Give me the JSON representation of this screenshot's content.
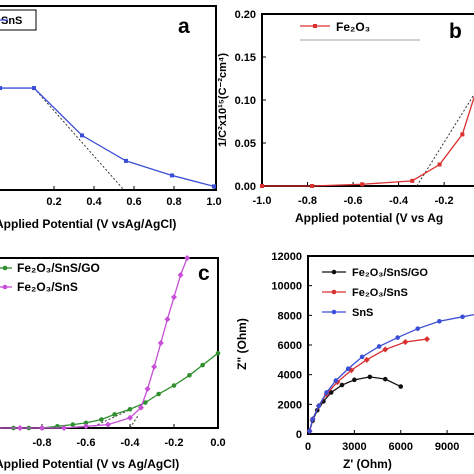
{
  "chart_data": [
    {
      "panel": "a",
      "type": "line",
      "xlabel": "Applied Potential (V vsAg/AgCl)",
      "xticks": [
        "0.2",
        "0.4",
        "0.6",
        "0.8",
        "1.0"
      ],
      "xlim": [
        -0.07,
        1.0
      ],
      "ylim": [
        0,
        1
      ],
      "series": [
        {
          "name": "SnS",
          "color": "#3a4fd6",
          "x": [
            -0.07,
            0.1,
            0.34,
            0.56,
            0.79,
            1.0
          ],
          "y": [
            0.56,
            0.56,
            0.3,
            0.16,
            0.08,
            0.02
          ]
        }
      ],
      "fit_line": {
        "x": [
          0.1,
          0.55
        ],
        "y": [
          0.56,
          0.0
        ]
      },
      "legend_entries": [
        "SnS"
      ]
    },
    {
      "panel": "b",
      "type": "line",
      "xlabel": "Applied potential (V vs Ag/AgCl)",
      "xlabel_visible": "Applied potential (V vs Ag",
      "ylabel": "1/C²x10¹⁵(C⁻²cm⁴)",
      "xticks": [
        "-1.0",
        "-0.8",
        "-0.6",
        "-0.4",
        "-0.2"
      ],
      "yticks": [
        "0.00",
        "0.05",
        "0.10",
        "0.15",
        "0.20"
      ],
      "xlim": [
        -1.0,
        -0.06
      ],
      "ylim": [
        0,
        0.2
      ],
      "series": [
        {
          "name": "Fe2O3",
          "color": "#d93030",
          "x": [
            -1.0,
            -0.78,
            -0.56,
            -0.34,
            -0.22,
            -0.12,
            -0.06
          ],
          "y": [
            0.0,
            0.0,
            0.002,
            0.006,
            0.025,
            0.06,
            0.11
          ]
        }
      ],
      "fit_line": {
        "x": [
          -0.32,
          -0.06
        ],
        "y": [
          0.0,
          0.11
        ]
      },
      "legend_entries": [
        "Fe₂O₃"
      ]
    },
    {
      "panel": "c",
      "type": "line",
      "xlabel": "Applied Potential (V vs Ag/AgCl)",
      "xticks": [
        "-0.8",
        "-0.6",
        "-0.4",
        "-0.2",
        "0.0"
      ],
      "xlim": [
        -1.0,
        0.0
      ],
      "ylim": [
        0,
        1
      ],
      "series": [
        {
          "name": "Fe2O3/SnS/GO",
          "color": "#2f8f2f",
          "x": [
            -1.0,
            -0.93,
            -0.86,
            -0.8,
            -0.73,
            -0.66,
            -0.6,
            -0.53,
            -0.47,
            -0.4,
            -0.33,
            -0.27,
            -0.2,
            -0.13,
            -0.07,
            0.0
          ],
          "y": [
            0.0,
            0.0,
            0.0,
            0.0,
            0.01,
            0.02,
            0.03,
            0.05,
            0.08,
            0.11,
            0.15,
            0.2,
            0.25,
            0.31,
            0.37,
            0.44
          ]
        },
        {
          "name": "Fe2O3/SnS",
          "color": "#c84fd8",
          "x": [
            -1.0,
            -0.9,
            -0.8,
            -0.7,
            -0.6,
            -0.5,
            -0.4,
            -0.35,
            -0.32,
            -0.29,
            -0.26,
            -0.23,
            -0.2,
            -0.17,
            -0.14
          ],
          "y": [
            0.0,
            0.0,
            0.0,
            0.0,
            0.01,
            0.02,
            0.06,
            0.12,
            0.23,
            0.36,
            0.5,
            0.64,
            0.77,
            0.9,
            1.0
          ]
        }
      ],
      "fit_lines": [
        {
          "x": [
            -0.58,
            -0.33
          ],
          "y": [
            0.0,
            0.15
          ]
        },
        {
          "x": [
            -0.4,
            -0.36
          ],
          "y": [
            0.0,
            0.08
          ]
        }
      ],
      "legend_entries": [
        "Fe₂O₃/SnS/GO",
        "Fe₂O₃/SnS"
      ]
    },
    {
      "panel": "d",
      "type": "line",
      "xlabel": "Z' (Ohm)",
      "ylabel": "Z\" (Ohm)",
      "xticks": [
        "0",
        "3000",
        "6000",
        "9000"
      ],
      "yticks": [
        "0",
        "2000",
        "4000",
        "6000",
        "8000",
        "10000",
        "12000"
      ],
      "xlim": [
        0,
        11000
      ],
      "ylim": [
        0,
        12000
      ],
      "series": [
        {
          "name": "Fe2O3/SnS/GO",
          "color": "#111111",
          "x": [
            100,
            300,
            600,
            1000,
            1500,
            2200,
            3000,
            4000,
            5000,
            6000
          ],
          "y": [
            200,
            900,
            1600,
            2200,
            2800,
            3300,
            3650,
            3850,
            3700,
            3200
          ]
        },
        {
          "name": "Fe2O3/SnS",
          "color": "#d93030",
          "x": [
            100,
            300,
            700,
            1200,
            1900,
            2800,
            3800,
            5000,
            6300,
            7700
          ],
          "y": [
            200,
            1000,
            1900,
            2700,
            3500,
            4300,
            5000,
            5700,
            6200,
            6400
          ]
        },
        {
          "name": "SnS",
          "color": "#3a4fd6",
          "x": [
            100,
            300,
            700,
            1200,
            1800,
            2600,
            3500,
            4600,
            5800,
            7100,
            8500,
            10000,
            11000
          ],
          "y": [
            200,
            1000,
            1900,
            2800,
            3600,
            4400,
            5200,
            5900,
            6500,
            7100,
            7600,
            7900,
            8100
          ]
        }
      ],
      "legend_entries": [
        "Fe₂O₃/SnS/GO",
        "Fe₂O₃/SnS",
        "SnS"
      ]
    }
  ]
}
